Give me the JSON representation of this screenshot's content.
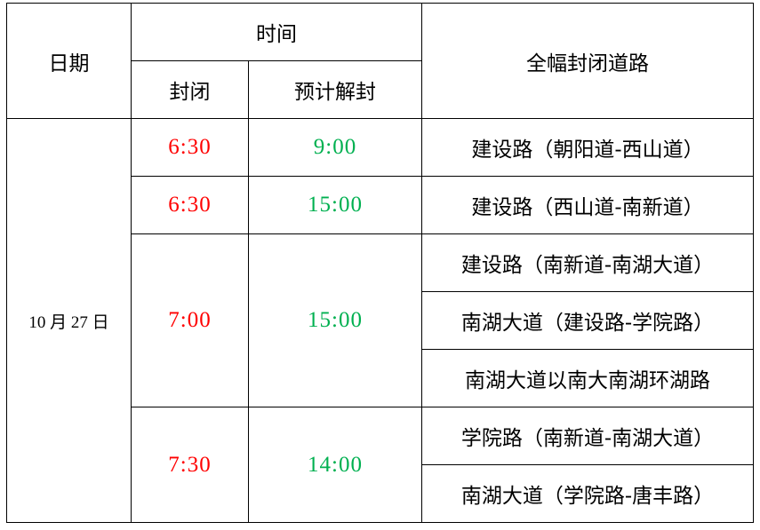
{
  "headers": {
    "date": "日期",
    "time": "时间",
    "close": "封闭",
    "reopen": "预计解封",
    "roads": "全幅封闭道路"
  },
  "colors": {
    "close": "#ff0000",
    "reopen": "#00b050"
  },
  "date": "10 月 27 日",
  "groups": [
    {
      "close": "6:30",
      "reopen": "9:00",
      "roads": [
        "建设路（朝阳道-西山道）"
      ]
    },
    {
      "close": "6:30",
      "reopen": "15:00",
      "roads": [
        "建设路（西山道-南新道）"
      ]
    },
    {
      "close": "7:00",
      "reopen": "15:00",
      "roads": [
        "建设路（南新道-南湖大道）",
        "南湖大道（建设路-学院路）",
        "南湖大道以南大南湖环湖路"
      ]
    },
    {
      "close": "7:30",
      "reopen": "14:00",
      "roads": [
        "学院路（南新道-南湖大道）",
        "南湖大道（学院路-唐丰路）"
      ]
    }
  ]
}
